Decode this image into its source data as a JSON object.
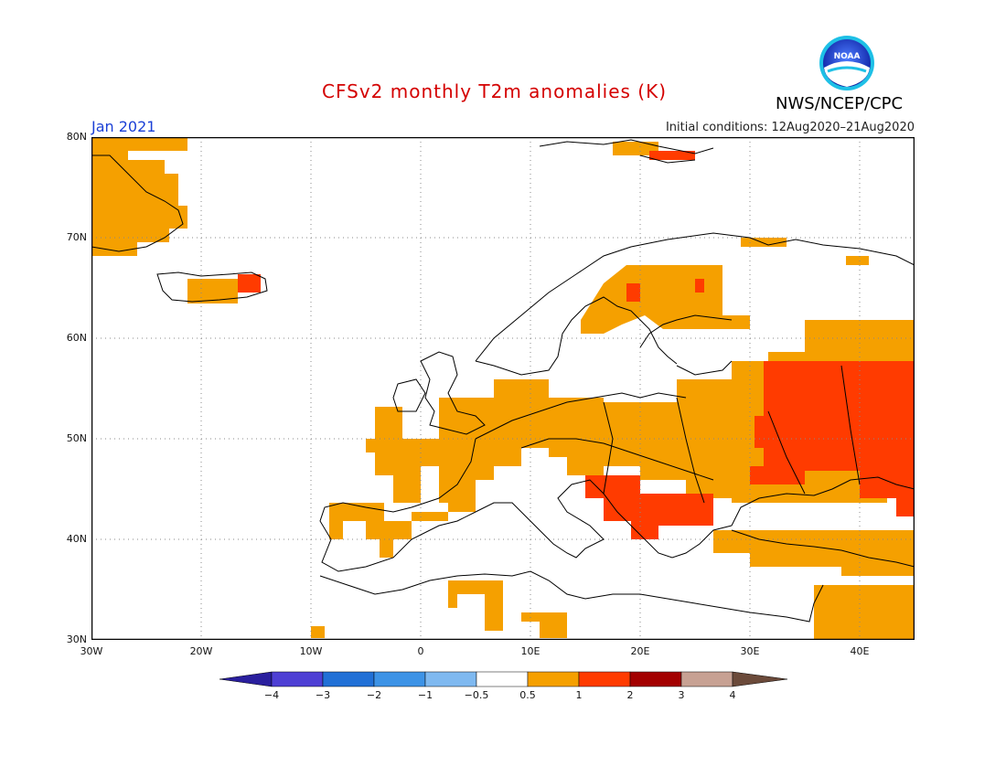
{
  "header": {
    "title": "CFSv2 monthly T2m anomalies (K)",
    "period": "Jan 2021",
    "initial_conditions": "Initial conditions: 12Aug2020–21Aug2020",
    "credit": "NWS/NCEP/CPC",
    "logo_text": "NOAA"
  },
  "colors": {
    "title": "#d40000",
    "period": "#1a3fd6",
    "anom_0_5_1": "#f5a000",
    "anom_1_2": "#ff3b00",
    "coast": "#000000",
    "grid": "#888888"
  },
  "axes": {
    "lat_labels": [
      "80N",
      "70N",
      "60N",
      "50N",
      "40N",
      "30N"
    ],
    "lon_labels": [
      "30W",
      "20W",
      "10W",
      "0",
      "10E",
      "20E",
      "30E",
      "40E"
    ],
    "lat_range": [
      30,
      80
    ],
    "lon_range": [
      -30,
      45
    ],
    "grid": true
  },
  "colorbar": {
    "labels": [
      "−4",
      "−3",
      "−2",
      "−1",
      "−0.5",
      "0.5",
      "1",
      "2",
      "3",
      "4"
    ],
    "colors": [
      "#2a1f9e",
      "#4e3fd4",
      "#2170d6",
      "#3d93e6",
      "#7fb9f0",
      "#ffffff",
      "#f5a000",
      "#ff3b00",
      "#a30000",
      "#c7a193",
      "#6b4a3a"
    ]
  },
  "chart_data": {
    "type": "heatmap",
    "title": "CFSv2 monthly T2m anomalies (K)",
    "units": "K",
    "x_range": [
      -30,
      45
    ],
    "y_range": [
      30,
      80
    ],
    "regions": [
      {
        "area": "Greenland east coast",
        "category": "0.5-1"
      },
      {
        "area": "Iceland",
        "category": "0.5-1"
      },
      {
        "area": "Iceland east",
        "category": "1-2"
      },
      {
        "area": "Svalbard",
        "category": "1-2"
      },
      {
        "area": "Northern Finland",
        "category": "0.5-1"
      },
      {
        "area": "Western & Central Europe",
        "category": "0.5-1"
      },
      {
        "area": "Iberia",
        "category": "0.5-1"
      },
      {
        "area": "Balkans",
        "category": "1-2"
      },
      {
        "area": "Western Russia / Ukraine",
        "category": "1-2"
      },
      {
        "area": "Turkey / Anatolia",
        "category": "0.5-1"
      },
      {
        "area": "North Africa",
        "category": "0.5-1"
      }
    ]
  }
}
